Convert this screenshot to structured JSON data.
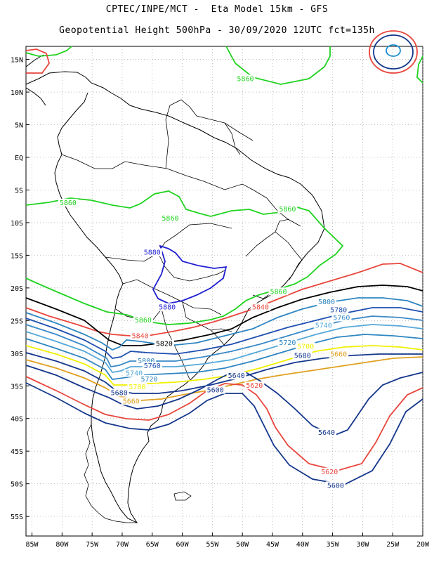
{
  "title": {
    "line1": "CPTEC/INPE/MCT -  Eta Model 15km - GFS",
    "line2": "Geopotential Height 500hPa - 30/09/2020 12UTC fct=135h"
  },
  "axes": {
    "lat_labels": [
      "15N",
      "10N",
      "5N",
      "EQ",
      "5S",
      "10S",
      "15S",
      "20S",
      "25S",
      "30S",
      "35S",
      "40S",
      "45S",
      "50S",
      "55S"
    ],
    "lat_values": [
      15,
      10,
      5,
      0,
      -5,
      -10,
      -15,
      -20,
      -25,
      -30,
      -35,
      -40,
      -45,
      -50,
      -55
    ],
    "lon_labels": [
      "85W",
      "80W",
      "75W",
      "70W",
      "65W",
      "60W",
      "55W",
      "50W",
      "45W",
      "40W",
      "35W",
      "30W",
      "25W",
      "20W"
    ],
    "lon_values": [
      -85,
      -80,
      -75,
      -70,
      -65,
      -60,
      -55,
      -50,
      -45,
      -40,
      -35,
      -30,
      -25,
      -20
    ],
    "lon_range": [
      -86,
      -20
    ],
    "lat_range": [
      -58,
      17
    ],
    "grid": "dotted"
  },
  "contour_colors": {
    "5860": "#1fd31f",
    "5880": "#1f1fd3",
    "5840": "#e8463c",
    "5820": "#000000",
    "5800": "#2e86c1",
    "5780": "#1f4fb0",
    "5760": "#3a8ac8",
    "5740": "#55a8d8",
    "5720": "#2e86c1",
    "5700": "#f0f000",
    "5680": "#14378c",
    "5660": "#e0a020",
    "5640": "#14378c",
    "5620": "#e8463c",
    "5600": "#14378c",
    "5560": "#1f8fd0"
  },
  "contour_labels": [
    {
      "text": "5860",
      "color": "#1fd31f",
      "lon": -49.5,
      "lat": 11.8
    },
    {
      "text": "5860",
      "color": "#1fd31f",
      "lon": -79,
      "lat": -7.2
    },
    {
      "text": "5860",
      "color": "#1fd31f",
      "lon": -62,
      "lat": -9.6
    },
    {
      "text": "5860",
      "color": "#1fd31f",
      "lon": -42.5,
      "lat": -8.2
    },
    {
      "text": "5860",
      "color": "#1fd31f",
      "lon": -44,
      "lat": -20.8
    },
    {
      "text": "5860",
      "color": "#1fd31f",
      "lon": -66.5,
      "lat": -25.2
    },
    {
      "text": "5880",
      "color": "#1f1fd3",
      "lon": -65,
      "lat": -14.8
    },
    {
      "text": "5880",
      "color": "#1f1fd3",
      "lon": -62.5,
      "lat": -23.2
    },
    {
      "text": "5840",
      "color": "#e8463c",
      "lon": -47,
      "lat": -23.2
    },
    {
      "text": "5840",
      "color": "#e8463c",
      "lon": -67,
      "lat": -27.6
    },
    {
      "text": "5820",
      "color": "#000000",
      "lon": -63,
      "lat": -28.8
    },
    {
      "text": "5800",
      "color": "#2e86c1",
      "lon": -36,
      "lat": -22.4
    },
    {
      "text": "5780",
      "color": "#1f4fb0",
      "lon": -34,
      "lat": -23.6
    },
    {
      "text": "5760",
      "color": "#3a8ac8",
      "lon": -33.5,
      "lat": -24.8
    },
    {
      "text": "5740",
      "color": "#55a8d8",
      "lon": -36.5,
      "lat": -26.0
    },
    {
      "text": "5720",
      "color": "#2e86c1",
      "lon": -42.5,
      "lat": -28.6
    },
    {
      "text": "5700",
      "color": "#f0f000",
      "lon": -39.5,
      "lat": -29.2
    },
    {
      "text": "5680",
      "color": "#14378c",
      "lon": -40,
      "lat": -30.6
    },
    {
      "text": "5660",
      "color": "#e0a020",
      "lon": -34,
      "lat": -30.4
    },
    {
      "text": "5800",
      "color": "#2e86c1",
      "lon": -66,
      "lat": -31.4
    },
    {
      "text": "5760",
      "color": "#1f4fb0",
      "lon": -65,
      "lat": -32.2
    },
    {
      "text": "5740",
      "color": "#55a8d8",
      "lon": -68,
      "lat": -33.3
    },
    {
      "text": "5720",
      "color": "#2e86c1",
      "lon": -65.5,
      "lat": -34.2
    },
    {
      "text": "5700",
      "color": "#f0f000",
      "lon": -67.5,
      "lat": -35.4
    },
    {
      "text": "5680",
      "color": "#14378c",
      "lon": -70.5,
      "lat": -36.3
    },
    {
      "text": "5660",
      "color": "#e0a020",
      "lon": -68.5,
      "lat": -37.6
    },
    {
      "text": "5640",
      "color": "#14378c",
      "lon": -51,
      "lat": -33.7
    },
    {
      "text": "5620",
      "color": "#e8463c",
      "lon": -48,
      "lat": -35.2
    },
    {
      "text": "5600",
      "color": "#14378c",
      "lon": -54.5,
      "lat": -35.9
    },
    {
      "text": "5640",
      "color": "#14378c",
      "lon": -36,
      "lat": -42.4
    },
    {
      "text": "5620",
      "color": "#e8463c",
      "lon": -35.5,
      "lat": -48.4
    },
    {
      "text": "5600",
      "color": "#14378c",
      "lon": -34.5,
      "lat": -50.5
    }
  ]
}
